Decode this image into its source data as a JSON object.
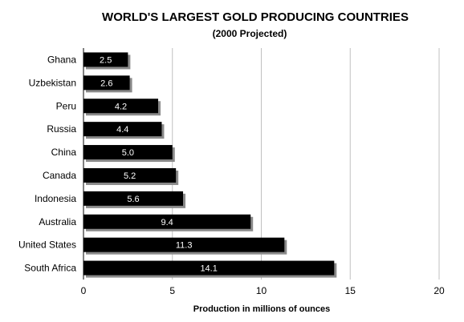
{
  "chart_data": {
    "type": "bar",
    "orientation": "horizontal",
    "title": "WORLD'S LARGEST GOLD PRODUCING COUNTRIES",
    "subtitle": "(2000 Projected)",
    "xlabel": "Production in millions of ounces",
    "ylabel": "",
    "categories": [
      "Ghana",
      "Uzbekistan",
      "Peru",
      "Russia",
      "China",
      "Canada",
      "Indonesia",
      "Australia",
      "United States",
      "South Africa"
    ],
    "values": [
      2.5,
      2.6,
      4.2,
      4.4,
      5.0,
      5.2,
      5.6,
      9.4,
      11.3,
      14.1
    ],
    "data_labels": [
      "2.5",
      "2.6",
      "4.2",
      "4.4",
      "5.0",
      "5.2",
      "5.6",
      "9.4",
      "11.3",
      "14.1"
    ],
    "xlim": [
      0,
      20
    ],
    "xticks": [
      0,
      5,
      10,
      15,
      20
    ],
    "xtick_labels": [
      "0",
      "5",
      "10",
      "15",
      "20"
    ],
    "grid": "vertical",
    "legend": "none",
    "bar_color": "#000000",
    "bar_shadow_color": "#8a8a8a",
    "grid_color": "#c0c0c0"
  }
}
